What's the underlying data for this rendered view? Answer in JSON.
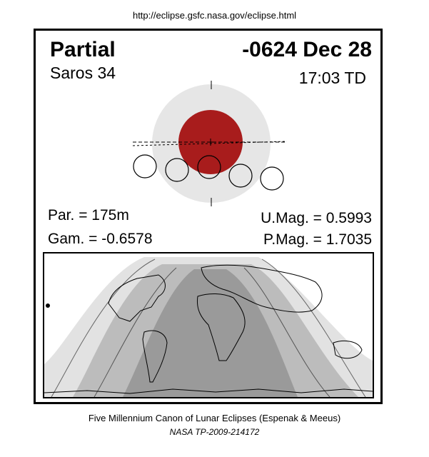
{
  "header": {
    "url": "http://eclipse.gsfc.nasa.gov/eclipse.html"
  },
  "eclipse": {
    "type": "Partial",
    "date": "-0624 Dec 28",
    "saros": "Saros  34",
    "time": "17:03 TD",
    "parameters": {
      "par": "Par. = 175m",
      "gam": "Gam. = -0.6578",
      "umag": "U.Mag. = 0.5993",
      "pmag": "P.Mag. = 1.7035"
    }
  },
  "colors": {
    "moon": "#a81c1c",
    "penumbra": "#e6e6e6",
    "map_dark": "#9a9a9a",
    "map_mid": "#bcbcbc",
    "map_light": "#e2e2e2"
  },
  "footer": {
    "line1": "Five Millennium Canon of Lunar Eclipses (Espenak & Meeus)",
    "line2": "NASA TP-2009-214172"
  }
}
